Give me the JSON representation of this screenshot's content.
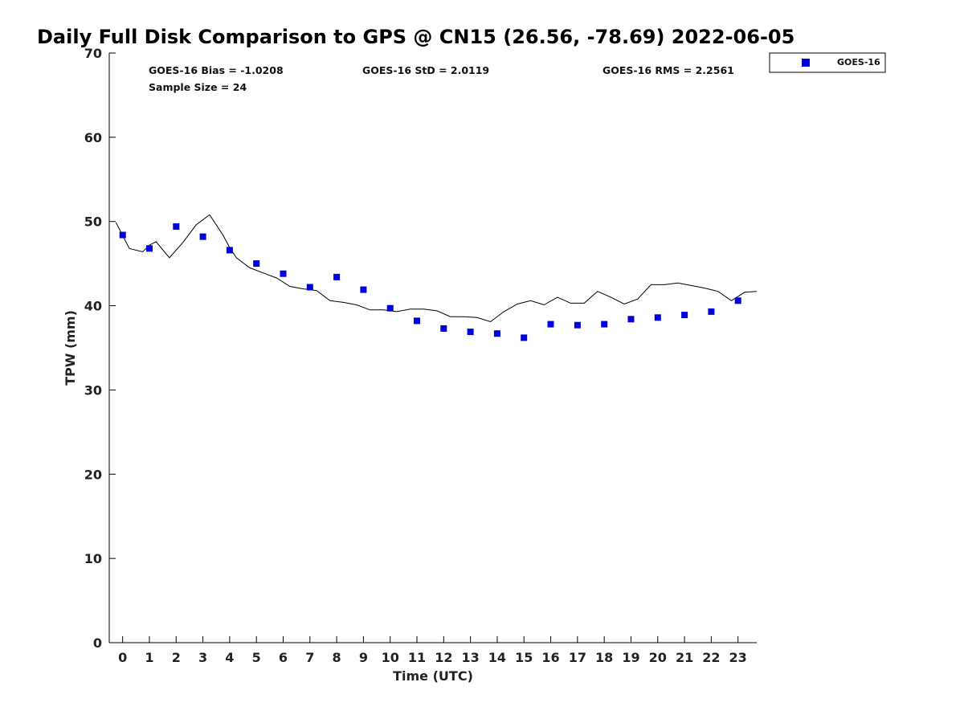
{
  "chart_data": {
    "type": "scatter",
    "title": "Daily Full Disk Comparison to GPS @ CN15 (26.56, -78.69) 2022-06-05",
    "xlabel": "Time (UTC)",
    "ylabel": "TPW (mm)",
    "xlim": [
      -0.5,
      23.7
    ],
    "ylim": [
      0,
      70
    ],
    "x_ticks": [
      0,
      1,
      2,
      3,
      4,
      5,
      6,
      7,
      8,
      9,
      10,
      11,
      12,
      13,
      14,
      15,
      16,
      17,
      18,
      19,
      20,
      21,
      22,
      23
    ],
    "y_ticks": [
      0,
      10,
      20,
      30,
      40,
      50,
      60,
      70
    ],
    "grid": false,
    "legend_position": "outside-top-right",
    "stats": {
      "bias": "GOES-16 Bias = -1.0208",
      "std": "GOES-16 StD = 2.0119",
      "rms": "GOES-16 RMS = 2.2561",
      "sample_size": "Sample Size = 24"
    },
    "series": [
      {
        "name": "GOES-16",
        "marker": "square",
        "color": "#0000dd",
        "x": [
          0,
          1,
          2,
          3,
          4,
          5,
          6,
          7,
          8,
          9,
          10,
          11,
          12,
          13,
          14,
          15,
          16,
          17,
          18,
          19,
          20,
          21,
          22,
          23
        ],
        "y": [
          48.4,
          46.8,
          49.4,
          48.2,
          46.6,
          45.0,
          43.8,
          42.2,
          43.4,
          41.9,
          39.7,
          38.2,
          37.3,
          36.9,
          36.7,
          36.2,
          37.8,
          37.7,
          37.8,
          38.4,
          38.6,
          38.9,
          39.3,
          40.6
        ]
      },
      {
        "marker": "line",
        "color": "#000000",
        "x": [
          -0.25,
          0.25,
          0.75,
          1.0,
          1.25,
          1.75,
          2.25,
          2.75,
          3.25,
          3.75,
          4.0,
          4.25,
          4.75,
          5.25,
          5.75,
          6.25,
          6.75,
          7.0,
          7.25,
          7.75,
          8.25,
          8.75,
          9.0,
          9.25,
          9.75,
          10.25,
          10.75,
          11.25,
          11.75,
          12.25,
          12.75,
          13.25,
          13.75,
          14.25,
          14.75,
          15.25,
          15.75,
          16.25,
          16.75,
          17.25,
          17.75,
          18.25,
          18.75,
          19.25,
          19.75,
          20.25,
          20.75,
          21.25,
          21.75,
          22.25,
          22.75,
          23.25,
          23.7
        ],
        "y": [
          49.9,
          46.8,
          46.4,
          47.2,
          47.6,
          45.7,
          47.5,
          49.6,
          50.8,
          48.4,
          46.9,
          45.7,
          44.5,
          43.9,
          43.3,
          42.3,
          42.0,
          41.9,
          41.8,
          40.6,
          40.4,
          40.1,
          39.8,
          39.5,
          39.5,
          39.3,
          39.6,
          39.6,
          39.4,
          38.7,
          38.7,
          38.6,
          38.1,
          39.3,
          40.2,
          40.6,
          40.1,
          41.0,
          40.3,
          40.3,
          41.7,
          41.0,
          40.2,
          40.8,
          42.5,
          42.5,
          42.7,
          42.4,
          42.1,
          41.7,
          40.6,
          41.6,
          41.7
        ]
      }
    ]
  }
}
